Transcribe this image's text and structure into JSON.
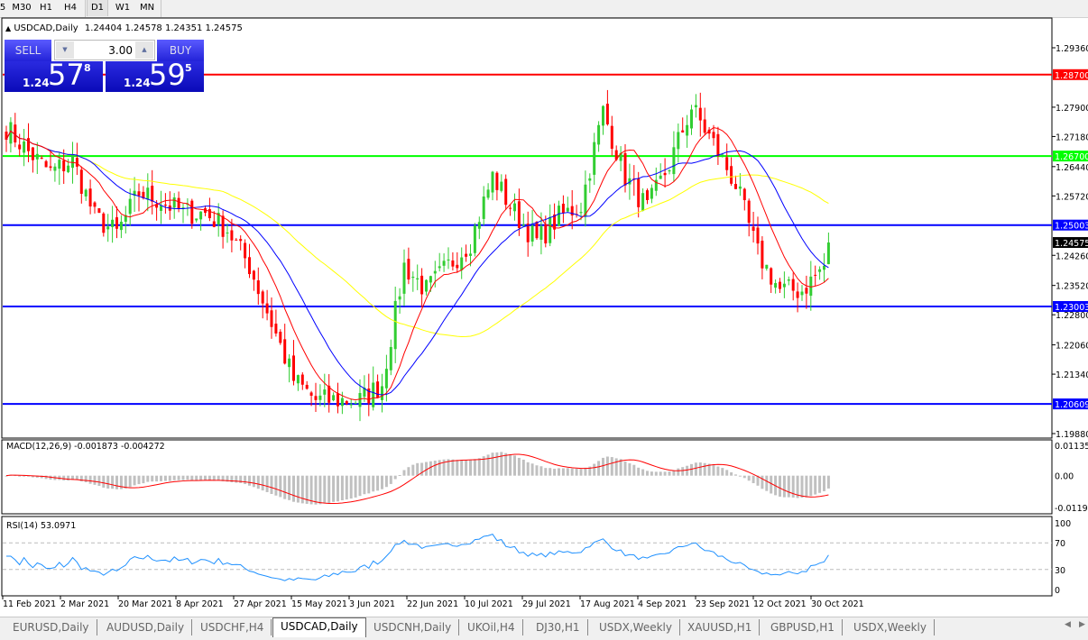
{
  "toolbar": {
    "timeframes": [
      {
        "label": "5",
        "active": false
      },
      {
        "label": "M30",
        "active": false
      },
      {
        "label": "H1",
        "active": false
      },
      {
        "label": "H4",
        "active": false
      },
      {
        "label": "D1",
        "active": true
      },
      {
        "label": "W1",
        "active": false
      },
      {
        "label": "MN",
        "active": false
      }
    ]
  },
  "chart_header": {
    "symbol": "USDCAD,Daily",
    "ohlc": "1.24404 1.24578 1.24351 1.24575"
  },
  "trade_panel": {
    "sell_label": "SELL",
    "buy_label": "BUY",
    "lot_value": "3.00",
    "sell_price": {
      "prefix": "1.24",
      "big": "57",
      "sup": "8"
    },
    "buy_price": {
      "prefix": "1.24",
      "big": "59",
      "sup": "5"
    }
  },
  "colors": {
    "up_candle": "#32cd32",
    "down_candle": "#ff0000",
    "ma_fast": "#ff0000",
    "ma_mid": "#0000ff",
    "ma_slow": "#ffff00",
    "resistance": "#ff0000",
    "green_level": "#00ff00",
    "blue_level": "#0000ff",
    "macd_hist": "#c0c0c0",
    "macd_signal": "#ff0000",
    "rsi": "#1e90ff"
  },
  "chart_data": {
    "type": "candlestick",
    "symbol": "USDCAD",
    "timeframe": "Daily",
    "ylim": [
      1.1988,
      1.2936
    ],
    "price_ticks": [
      "1.29360",
      "1.27900",
      "1.27180",
      "1.26440",
      "1.25720",
      "1.24260",
      "1.23520",
      "1.22800",
      "1.22060",
      "1.21340",
      "1.19880"
    ],
    "price_tick_values": [
      1.2936,
      1.279,
      1.2718,
      1.2644,
      1.2572,
      1.2426,
      1.2352,
      1.228,
      1.2206,
      1.2134,
      1.1988
    ],
    "horizontal_lines": [
      {
        "label": "1.28700",
        "value": 1.287,
        "color": "#ff0000"
      },
      {
        "label": "1.26700",
        "value": 1.267,
        "color": "#00ff00"
      },
      {
        "label": "1.25003",
        "value": 1.25003,
        "color": "#0000ff"
      },
      {
        "label": "1.23003",
        "value": 1.23003,
        "color": "#0000ff"
      },
      {
        "label": "1.20609",
        "value": 1.20609,
        "color": "#0000ff"
      }
    ],
    "current_price": {
      "label": "1.24575",
      "value": 1.24575
    },
    "weekly_closes_approx": [
      1.274,
      1.268,
      1.263,
      1.266,
      1.252,
      1.248,
      1.258,
      1.256,
      1.253,
      1.253,
      1.249,
      1.24,
      1.226,
      1.212,
      1.207,
      1.207,
      1.207,
      1.211,
      1.24,
      1.234,
      1.24,
      1.246,
      1.262,
      1.253,
      1.246,
      1.252,
      1.255,
      1.278,
      1.262,
      1.254,
      1.265,
      1.279,
      1.27,
      1.26,
      1.243,
      1.234,
      1.234,
      1.24,
      1.2457
    ],
    "moving_averages": [
      "fast (red)",
      "medium (blue)",
      "slow (yellow)"
    ],
    "x_tick_labels": [
      "11 Feb 2021",
      "2 Mar 2021",
      "20 Mar 2021",
      "8 Apr 2021",
      "27 Apr 2021",
      "15 May 2021",
      "3 Jun 2021",
      "22 Jun 2021",
      "10 Jul 2021",
      "29 Jul 2021",
      "17 Aug 2021",
      "4 Sep 2021",
      "23 Sep 2021",
      "12 Oct 2021",
      "30 Oct 2021"
    ],
    "macd": {
      "label": "MACD(12,26,9) -0.001873 -0.004272",
      "ticks": [
        "0.01135",
        "0.00",
        "-0.01190"
      ],
      "ylim": [
        -0.0119,
        0.01135
      ]
    },
    "rsi": {
      "label": "RSI(14) 53.0971",
      "ticks": [
        "100",
        "70",
        "30",
        "0"
      ],
      "levels": [
        70,
        30
      ],
      "ylim": [
        0,
        100
      ]
    }
  },
  "tabs": [
    {
      "label": "EURUSD,Daily",
      "active": false
    },
    {
      "label": "AUDUSD,Daily",
      "active": false
    },
    {
      "label": "USDCHF,H4",
      "active": false
    },
    {
      "label": "USDCAD,Daily",
      "active": true
    },
    {
      "label": "USDCNH,Daily",
      "active": false
    },
    {
      "label": "UKOil,H4",
      "active": false
    },
    {
      "label": "DJ30,H1",
      "active": false
    },
    {
      "label": "USDX,Weekly",
      "active": false
    },
    {
      "label": "XAUUSD,H1",
      "active": false
    },
    {
      "label": "GBPUSD,H1",
      "active": false
    },
    {
      "label": "USDX,Weekly",
      "active": false
    }
  ]
}
